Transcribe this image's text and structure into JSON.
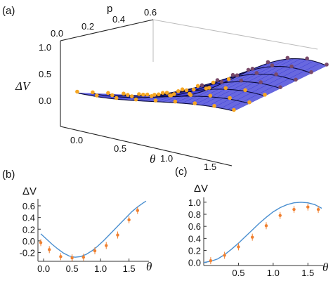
{
  "figure": {
    "panel_a_tag": "(a)",
    "panel_b_tag": "(b)",
    "panel_c_tag": "(c)"
  },
  "chart_data": [
    {
      "panel": "(a)",
      "type": "surface",
      "xlabel": "θ",
      "ylabel": "p",
      "zlabel": "ΔV",
      "x_ticks": [
        "0.0",
        "0.5",
        "1.0",
        "1.5"
      ],
      "y_ticks": [
        "0.0",
        "0.2",
        "0.4",
        "0.6"
      ],
      "z_ticks": [
        "0.0",
        "0.5",
        "1.0"
      ],
      "xlim": [
        -0.1,
        1.65
      ],
      "ylim": [
        0.0,
        0.6
      ],
      "zlim": [
        -0.4,
        1.05
      ],
      "surface_color": "#3d3dd6",
      "curve_color": "#0a0a3a",
      "point_color_front": "#f5a623",
      "point_color_back": "#7a4a6a",
      "p_slices": [
        0.0,
        0.1,
        0.2,
        0.3,
        0.4,
        0.5,
        0.6
      ],
      "theta_samples": [
        0.0,
        0.2,
        0.4,
        0.6,
        0.8,
        1.0,
        1.2,
        1.4,
        1.6
      ]
    },
    {
      "panel": "(b)",
      "type": "scatter",
      "xlabel": "θ",
      "ylabel": "ΔV",
      "x_ticks": [
        "0.0",
        "0.5",
        "1.0",
        "1.5"
      ],
      "y_ticks": [
        "-0.2",
        "0.0",
        "0.2",
        "0.4",
        "0.6"
      ],
      "xlim": [
        -0.1,
        1.85
      ],
      "ylim": [
        -0.35,
        0.72
      ],
      "series": [
        {
          "kind": "curve",
          "color": "#4a8fd0",
          "x": [
            -0.05,
            0.05,
            0.15,
            0.25,
            0.35,
            0.45,
            0.55,
            0.65,
            0.75,
            0.85,
            0.95,
            1.05,
            1.15,
            1.25,
            1.35,
            1.45,
            1.55,
            1.65,
            1.75,
            1.8
          ],
          "y": [
            0.12,
            0.03,
            -0.06,
            -0.14,
            -0.21,
            -0.26,
            -0.28,
            -0.27,
            -0.23,
            -0.17,
            -0.09,
            0.0,
            0.1,
            0.2,
            0.3,
            0.4,
            0.5,
            0.58,
            0.65,
            0.68
          ]
        },
        {
          "kind": "points",
          "color": "#f08030",
          "x": [
            -0.05,
            0.1,
            0.3,
            0.5,
            0.7,
            0.9,
            1.1,
            1.3,
            1.5,
            1.65
          ],
          "y": [
            -0.03,
            -0.15,
            -0.27,
            -0.29,
            -0.28,
            -0.17,
            -0.08,
            0.1,
            0.36,
            0.52
          ]
        }
      ]
    },
    {
      "panel": "(c)",
      "type": "scatter",
      "xlabel": "θ",
      "ylabel": "ΔV",
      "x_ticks": [
        "0.5",
        "1.0",
        "1.5"
      ],
      "y_ticks": [
        "0.0",
        "0.2",
        "0.4",
        "0.6",
        "0.8",
        "1.0"
      ],
      "xlim": [
        0.0,
        1.72
      ],
      "ylim": [
        -0.05,
        1.08
      ],
      "series": [
        {
          "kind": "curve",
          "color": "#4a8fd0",
          "x": [
            0.0,
            0.1,
            0.2,
            0.3,
            0.4,
            0.5,
            0.6,
            0.7,
            0.8,
            0.9,
            1.0,
            1.1,
            1.2,
            1.3,
            1.4,
            1.5,
            1.6,
            1.7
          ],
          "y": [
            0.0,
            0.02,
            0.06,
            0.13,
            0.22,
            0.32,
            0.43,
            0.54,
            0.65,
            0.75,
            0.84,
            0.91,
            0.96,
            0.99,
            1.0,
            0.99,
            0.96,
            0.9
          ]
        },
        {
          "kind": "points",
          "color": "#f08030",
          "x": [
            0.1,
            0.3,
            0.5,
            0.7,
            0.9,
            1.1,
            1.3,
            1.5,
            1.65
          ],
          "y": [
            0.03,
            0.12,
            0.26,
            0.42,
            0.61,
            0.78,
            0.88,
            0.92,
            0.88
          ]
        }
      ]
    }
  ]
}
